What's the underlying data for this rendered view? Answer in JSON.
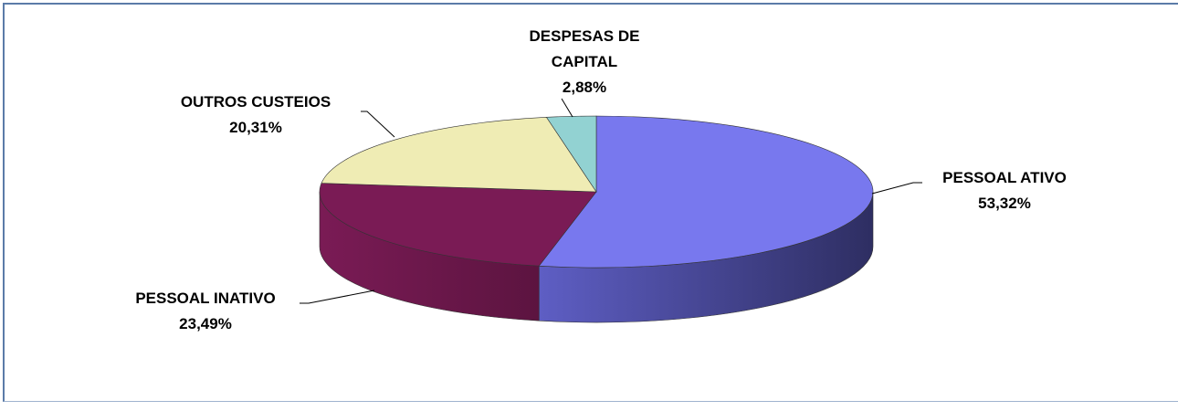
{
  "chart_data": {
    "type": "pie3d",
    "categories": [
      "PESSOAL ATIVO",
      "PESSOAL INATIVO",
      "OUTROS CUSTEIOS",
      "DESPESAS DE CAPITAL"
    ],
    "values": [
      53.32,
      23.49,
      20.31,
      2.88
    ],
    "value_labels": [
      "53,32%",
      "23,49%",
      "20,31%",
      "2,88%"
    ],
    "colors": [
      "#7878ee",
      "#7a1b55",
      "#efecb4",
      "#92d2d2"
    ],
    "wall_colors": [
      [
        "#5e5ec4",
        "#2e2e62"
      ],
      [
        "#7a1b55",
        "#5c1440"
      ],
      [
        "#c9c595",
        "#a9a67a"
      ],
      [
        "#6fa8a8",
        "#4f8585"
      ]
    ]
  }
}
